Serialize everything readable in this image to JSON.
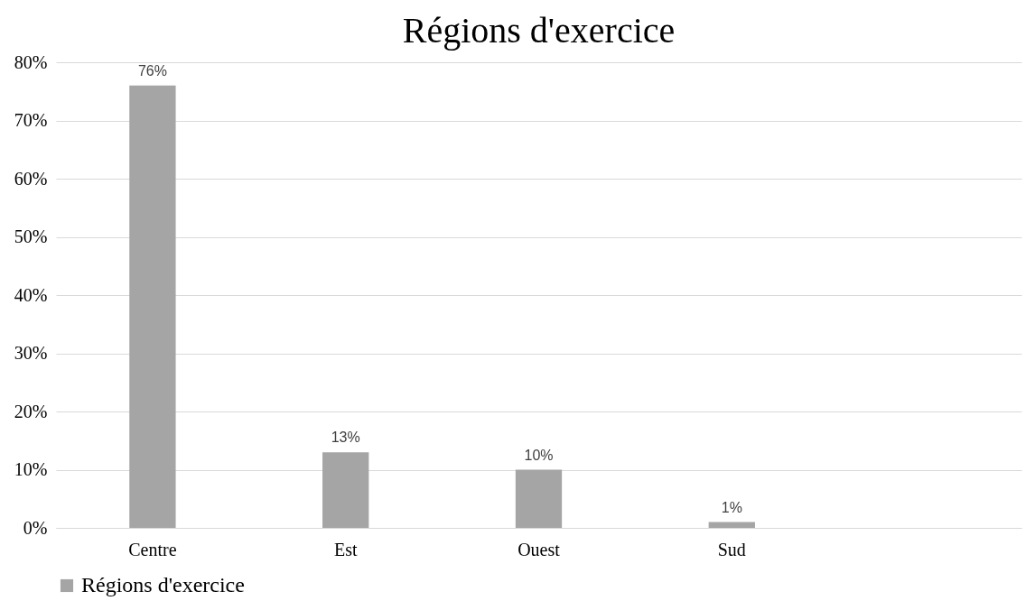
{
  "chart_data": {
    "type": "bar",
    "title": "Régions d'exercice",
    "categories": [
      "Centre",
      "Est",
      "Ouest",
      "Sud",
      null
    ],
    "series": [
      {
        "name": "Régions d'exercice",
        "color": "#a5a5a5",
        "values": [
          76,
          13,
          10,
          1,
          null
        ],
        "value_labels": [
          "76%",
          "13%",
          "10%",
          "1%",
          null
        ]
      }
    ],
    "ylim": [
      0,
      80
    ],
    "yticks": [
      {
        "value": 0,
        "label": "0%"
      },
      {
        "value": 10,
        "label": "10%"
      },
      {
        "value": 20,
        "label": "20%"
      },
      {
        "value": 30,
        "label": "30%"
      },
      {
        "value": 40,
        "label": "40%"
      },
      {
        "value": 50,
        "label": "50%"
      },
      {
        "value": 60,
        "label": "60%"
      },
      {
        "value": 70,
        "label": "70%"
      },
      {
        "value": 80,
        "label": "80%"
      }
    ],
    "grid": "y",
    "legend": "bottom"
  }
}
